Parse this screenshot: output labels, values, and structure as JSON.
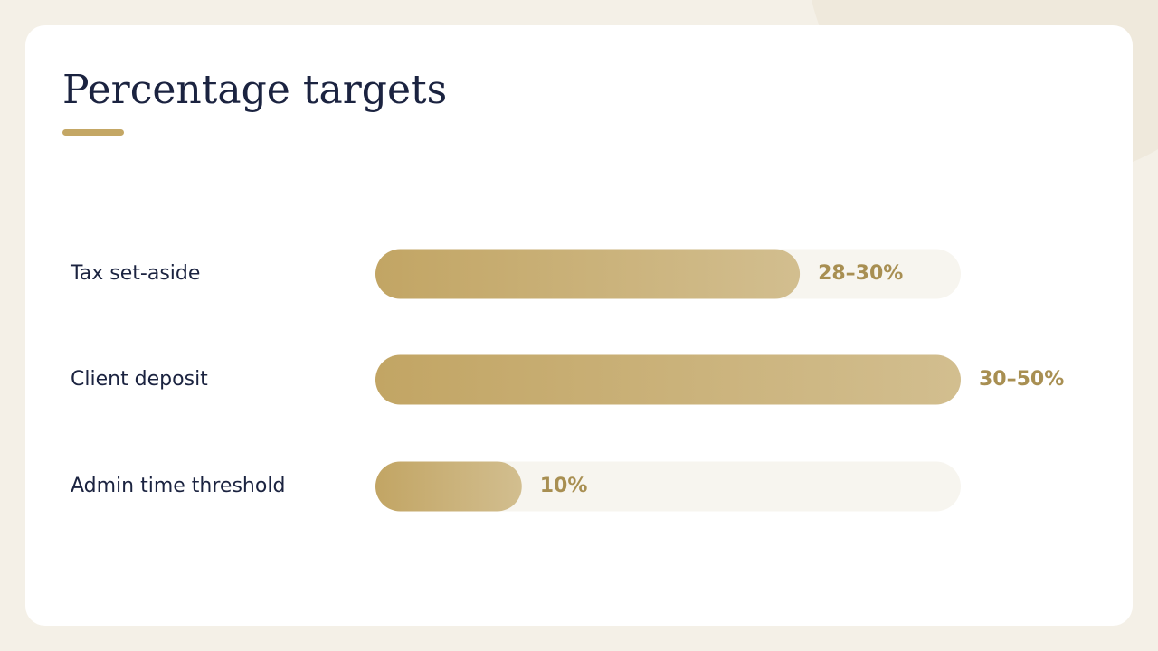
{
  "chart_data": {
    "type": "bar",
    "title": "Percentage targets",
    "categories": [
      "Tax set-aside",
      "Client deposit",
      "Admin time threshold"
    ],
    "values": [
      29,
      40,
      10
    ],
    "value_labels": [
      "28–30%",
      "30–50%",
      "10%"
    ],
    "color": "#c2a564",
    "xlim": [
      0,
      40
    ]
  }
}
